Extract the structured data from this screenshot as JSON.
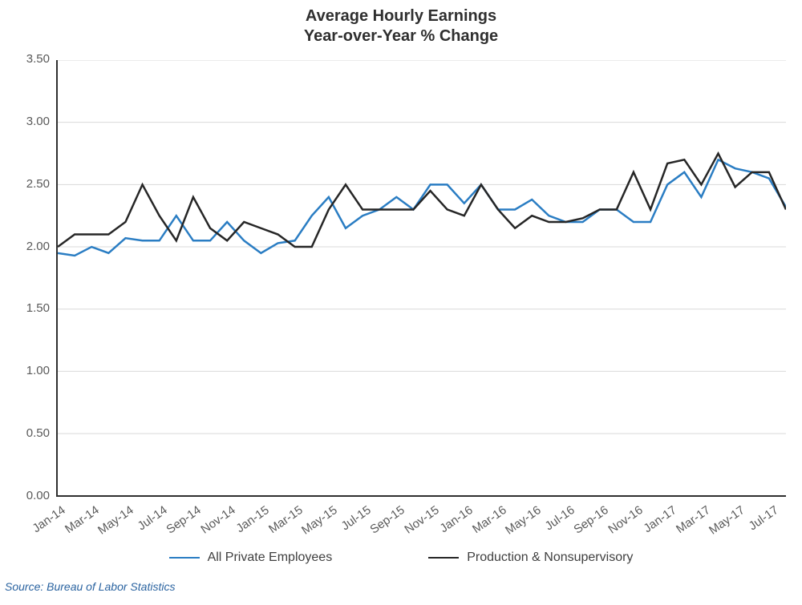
{
  "title_line1": "Average Hourly Earnings",
  "title_line2": "Year-over-Year % Change",
  "title_fontsize": 20,
  "source": "Source: Bureau of Labor Statistics",
  "source_fontsize": 14,
  "source_color": "#2a63a0",
  "background_color": "#ffffff",
  "axis_color": "#2f2f2f",
  "grid_color": "#d9d9d9",
  "text_color": "#5a5a5a",
  "axis_fontsize": 15,
  "legend_fontsize": 16,
  "chart": {
    "type": "line",
    "ylim": [
      0.0,
      3.5
    ],
    "yticks": [
      0.0,
      0.5,
      1.0,
      1.5,
      2.0,
      2.5,
      3.0,
      3.5
    ],
    "ytick_labels": [
      "0.00",
      "0.50",
      "1.00",
      "1.50",
      "2.00",
      "2.50",
      "3.00",
      "3.50"
    ],
    "x_labels": [
      "Jan-14",
      "Feb-14",
      "Mar-14",
      "Apr-14",
      "May-14",
      "Jun-14",
      "Jul-14",
      "Aug-14",
      "Sep-14",
      "Oct-14",
      "Nov-14",
      "Dec-14",
      "Jan-15",
      "Feb-15",
      "Mar-15",
      "Apr-15",
      "May-15",
      "Jun-15",
      "Jul-15",
      "Aug-15",
      "Sep-15",
      "Oct-15",
      "Nov-15",
      "Dec-15",
      "Jan-16",
      "Feb-16",
      "Mar-16",
      "Apr-16",
      "May-16",
      "Jun-16",
      "Jul-16",
      "Aug-16",
      "Sep-16",
      "Oct-16",
      "Nov-16",
      "Dec-16",
      "Jan-17",
      "Feb-17",
      "Mar-17",
      "Apr-17",
      "May-17",
      "Jun-17",
      "Jul-17",
      "Aug-17"
    ],
    "x_show_every": 2,
    "series": [
      {
        "name": "All Private Employees",
        "color": "#2a7dc3",
        "line_width": 2.5,
        "values": [
          1.95,
          1.93,
          2.0,
          1.95,
          2.07,
          2.05,
          2.05,
          2.25,
          2.05,
          2.05,
          2.2,
          2.05,
          1.95,
          2.03,
          2.05,
          2.25,
          2.4,
          2.15,
          2.25,
          2.3,
          2.4,
          2.3,
          2.5,
          2.5,
          2.35,
          2.5,
          2.3,
          2.3,
          2.38,
          2.25,
          2.2,
          2.2,
          2.3,
          2.3,
          2.2,
          2.2,
          2.5,
          2.6,
          2.4,
          2.7,
          2.63,
          2.6,
          2.55,
          2.32
        ]
      },
      {
        "name": "Production & Nonsupervisory",
        "color": "#262626",
        "line_width": 2.5,
        "values": [
          2.0,
          2.1,
          2.1,
          2.1,
          2.2,
          2.5,
          2.25,
          2.05,
          2.4,
          2.15,
          2.05,
          2.2,
          2.15,
          2.1,
          2.0,
          2.0,
          2.3,
          2.5,
          2.3,
          2.3,
          2.3,
          2.3,
          2.45,
          2.3,
          2.25,
          2.5,
          2.3,
          2.15,
          2.25,
          2.2,
          2.2,
          2.23,
          2.3,
          2.3,
          2.6,
          2.3,
          2.67,
          2.7,
          2.5,
          2.75,
          2.48,
          2.6,
          2.6,
          2.3
        ]
      }
    ]
  }
}
